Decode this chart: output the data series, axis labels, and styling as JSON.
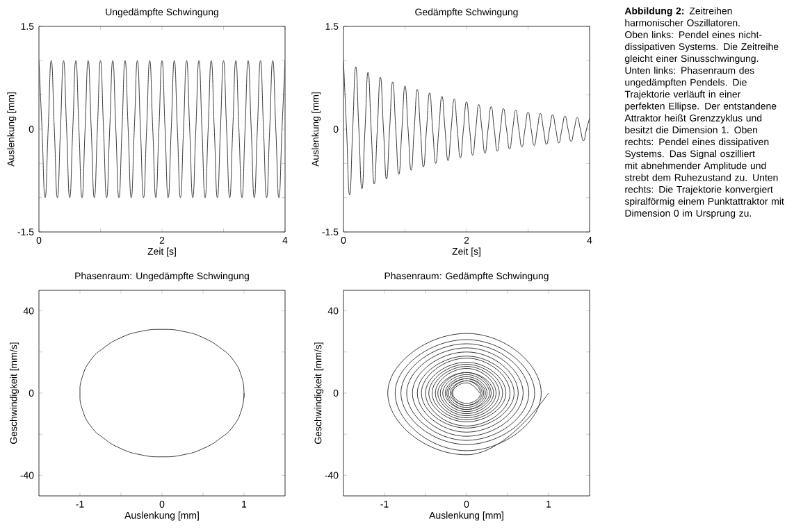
{
  "chart_data": [
    {
      "type": "line",
      "title": "Ungedämpfte Schwingung",
      "xlabel": "Zeit [s]",
      "ylabel": "Auslenkung [mm]",
      "xlim": [
        0,
        4
      ],
      "ylim": [
        -1.5,
        1.5
      ],
      "xticks": [
        0,
        {
          "value": 1,
          "label": null
        },
        2,
        {
          "value": 3,
          "label": null
        },
        4
      ],
      "yticks": [
        -1.5,
        {
          "value": -1,
          "label": null
        },
        {
          "value": -0.5,
          "label": null
        },
        0,
        {
          "value": 0.5,
          "label": null
        },
        {
          "value": 1,
          "label": null
        },
        1.5
      ],
      "grid": false,
      "marker": "none",
      "line_style": "solid",
      "x": [
        0,
        0.05,
        0.1,
        0.15,
        0.2,
        0.25,
        0.3,
        0.35,
        0.4,
        0.45,
        0.5,
        0.55,
        0.6,
        0.65,
        0.7,
        0.75,
        0.8,
        0.85,
        0.9,
        0.95,
        1,
        1.05,
        1.1,
        1.15,
        1.2,
        1.25,
        1.3,
        1.35,
        1.4,
        1.45,
        1.5,
        1.55,
        1.6,
        1.65,
        1.7,
        1.75,
        1.8,
        1.85,
        1.9,
        1.95,
        2,
        2.05,
        2.1,
        2.15,
        2.2,
        2.25,
        2.3,
        2.35,
        2.4,
        2.45,
        2.5,
        2.55,
        2.6,
        2.65,
        2.7,
        2.75,
        2.8,
        2.85,
        2.9,
        2.95,
        3,
        3.05,
        3.1,
        3.15,
        3.2,
        3.25,
        3.3,
        3.35,
        3.4,
        3.45,
        3.5,
        3.55,
        3.6,
        3.65,
        3.7,
        3.75,
        3.8,
        3.85,
        3.9,
        3.95,
        4
      ],
      "series": [
        {
          "color": "#3a3a3a",
          "values": [
            1,
            0,
            -1,
            0,
            1,
            0,
            -1,
            0,
            1,
            0,
            -1,
            0,
            1,
            0,
            -1,
            0,
            1,
            0,
            -1,
            0,
            1,
            0,
            -1,
            0,
            1,
            0,
            -1,
            0,
            1,
            0,
            -1,
            0,
            1,
            0,
            -1,
            0,
            1,
            0,
            -1,
            0,
            1,
            0,
            -1,
            0,
            1,
            0,
            -1,
            0,
            1,
            0,
            -1,
            0,
            1,
            0,
            -1,
            0,
            1,
            0,
            -1,
            0,
            1,
            0,
            -1,
            0,
            1,
            0,
            -1,
            0,
            1,
            0,
            -1,
            0,
            1,
            0,
            -1,
            0,
            1,
            0,
            -1,
            0,
            1
          ]
        }
      ]
    },
    {
      "type": "line",
      "title": "Gedämpfte Schwingung",
      "xlabel": "Zeit [s]",
      "ylabel": "Auslenkung [mm]",
      "xlim": [
        0,
        4
      ],
      "ylim": [
        -1.5,
        1.5
      ],
      "xticks": [
        0,
        {
          "value": 1,
          "label": null
        },
        2,
        {
          "value": 3,
          "label": null
        },
        4
      ],
      "yticks": [
        -1.5,
        {
          "value": -1,
          "label": null
        },
        {
          "value": -0.5,
          "label": null
        },
        0,
        {
          "value": 0.5,
          "label": null
        },
        {
          "value": 1,
          "label": null
        },
        1.5
      ],
      "grid": false,
      "marker": "none",
      "line_style": "solid",
      "x": [
        0,
        0.05,
        0.1,
        0.15,
        0.2,
        0.25,
        0.3,
        0.35,
        0.4,
        0.45,
        0.5,
        0.55,
        0.6,
        0.65,
        0.7,
        0.75,
        0.8,
        0.85,
        0.9,
        0.95,
        1,
        1.05,
        1.1,
        1.15,
        1.2,
        1.25,
        1.3,
        1.35,
        1.4,
        1.45,
        1.5,
        1.55,
        1.6,
        1.65,
        1.7,
        1.75,
        1.8,
        1.85,
        1.9,
        1.95,
        2,
        2.05,
        2.1,
        2.15,
        2.2,
        2.25,
        2.3,
        2.35,
        2.4,
        2.45,
        2.5,
        2.55,
        2.6,
        2.65,
        2.7,
        2.75,
        2.8,
        2.85,
        2.9,
        2.95,
        3,
        3.05,
        3.1,
        3.15,
        3.2,
        3.25,
        3.3,
        3.35,
        3.4,
        3.45,
        3.5,
        3.55,
        3.6,
        3.65,
        3.7,
        3.75,
        3.8,
        3.85,
        3.9,
        3.95,
        4
      ],
      "series": [
        {
          "color": "#3a3a3a",
          "values": [
            1.0,
            0,
            -0.96,
            0,
            0.91,
            0,
            -0.87,
            0,
            0.83,
            0,
            -0.8,
            0,
            0.76,
            0,
            -0.73,
            0,
            0.69,
            0,
            -0.66,
            0,
            0.63,
            0,
            -0.6,
            0,
            0.58,
            0,
            -0.55,
            0,
            0.53,
            0,
            -0.5,
            0,
            0.48,
            0,
            -0.46,
            0,
            0.44,
            0,
            -0.42,
            0,
            0.4,
            0,
            -0.38,
            0,
            0.36,
            0,
            -0.35,
            0,
            0.33,
            0,
            -0.32,
            0,
            0.3,
            0,
            -0.29,
            0,
            0.28,
            0,
            -0.26,
            0,
            0.25,
            0,
            -0.24,
            0,
            0.23,
            0,
            -0.22,
            0,
            0.21,
            0,
            -0.2,
            0,
            0.19,
            0,
            -0.18,
            0,
            0.17,
            0,
            -0.17,
            0,
            0.16
          ]
        }
      ]
    },
    {
      "type": "line",
      "title": "Phasenraum: Ungedämpfte Schwingung",
      "xlabel": "Auslenkung [mm]",
      "ylabel": "Geschwindigkeit [mm/s]",
      "xlim": [
        -1.5,
        1.5
      ],
      "ylim": [
        -50,
        50
      ],
      "xticks": [
        -1,
        {
          "value": -0.5,
          "label": null
        },
        0,
        {
          "value": 0.5,
          "label": null
        },
        1
      ],
      "yticks": [
        -40,
        {
          "value": -20,
          "label": null
        },
        0,
        {
          "value": 20,
          "label": null
        },
        40
      ],
      "grid": false,
      "marker": "none",
      "line_style": "solid",
      "series": [
        {
          "color": "#3a3a3a",
          "x": [
            1,
            0.97,
            0.87,
            0.71,
            0.5,
            0.26,
            0,
            -0.26,
            -0.5,
            -0.71,
            -0.87,
            -0.97,
            -1,
            -0.97,
            -0.87,
            -0.71,
            -0.5,
            -0.26,
            0,
            0.26,
            0.5,
            0.71,
            0.87,
            0.97,
            1,
            0.99
          ],
          "values": [
            0,
            -8,
            -16,
            -22,
            -27,
            -30,
            -31,
            -30,
            -27,
            -22,
            -16,
            -8,
            0,
            8,
            16,
            22,
            27,
            30,
            31,
            30,
            27,
            22,
            16,
            8,
            0,
            -3
          ]
        }
      ]
    },
    {
      "type": "line",
      "title": "Phasenraum: Gedämpfte Schwingung",
      "xlabel": "Auslenkung [mm]",
      "ylabel": "Geschwindigkeit [mm/s]",
      "xlim": [
        -1.5,
        1.5
      ],
      "ylim": [
        -50,
        50
      ],
      "xticks": [
        -1,
        {
          "value": -0.5,
          "label": null
        },
        0,
        {
          "value": 0.5,
          "label": null
        },
        1
      ],
      "yticks": [
        -40,
        {
          "value": -20,
          "label": null
        },
        0,
        {
          "value": 20,
          "label": null
        },
        40
      ],
      "grid": false,
      "marker": "none",
      "line_style": "solid",
      "series": [
        {
          "color": "#3a3a3a",
          "x": [
            1.0,
            0,
            -0.96,
            0,
            0.91,
            0,
            -0.87,
            0,
            0.83,
            0,
            -0.8,
            0,
            0.76,
            0,
            -0.73,
            0,
            0.69,
            0,
            -0.66,
            0,
            0.63,
            0,
            -0.6,
            0,
            0.58,
            0,
            -0.55,
            0,
            0.53,
            0,
            -0.5,
            0,
            0.48,
            0,
            -0.46,
            0,
            0.44,
            0,
            -0.42,
            0,
            0.4,
            0,
            -0.38,
            0,
            0.36,
            0,
            -0.35,
            0,
            0.33,
            0,
            -0.32,
            0,
            0.3,
            0,
            -0.29,
            0,
            0.28,
            0,
            -0.26,
            0,
            0.25,
            0,
            -0.24,
            0,
            0.23,
            0,
            -0.22,
            0,
            0.21,
            0,
            -0.2,
            0,
            0.19,
            0,
            -0.18,
            0,
            0.17,
            0,
            -0.17,
            0,
            0.16
          ],
          "values": [
            0,
            -30,
            0,
            29,
            0,
            -28,
            0,
            26,
            0,
            -25,
            0,
            24,
            0,
            -23,
            0,
            22,
            0,
            -21,
            0,
            20,
            0,
            -19,
            0,
            18,
            0,
            -17,
            0,
            17,
            0,
            -16,
            0,
            15,
            0,
            -14,
            0,
            14,
            0,
            -13,
            0,
            13,
            0,
            -12,
            0,
            12,
            0,
            -11,
            0,
            10,
            0,
            -10,
            0,
            10,
            0,
            -9,
            0,
            9,
            0,
            -8,
            0,
            8,
            0,
            -8,
            0,
            7,
            0,
            -7,
            0,
            7,
            0,
            -6,
            0,
            6,
            0,
            -6,
            0,
            6,
            0,
            -5,
            0,
            5,
            0
          ]
        }
      ]
    },
    {
      "type": "other",
      "annotations": [
        "**Abbildung 2:** Zeitreihen harmonischer Oszillatoren. Oben links: Pendel eines nicht-dissipativen Systems. Die Zeitreihe gleicht einer Sinusschwingung. Unten links: Phasenraum des ungedämpften Pendels. Die Trajektorie verläuft in einer perfekten Ellipse. Der entstandene Attraktor heißt Grenzzyklus und besitzt die Dimension 1. Oben rechts: Pendel eines dissipativen Systems. Das Signal oszilliert mit abnehmender Amplitude und strebt dem Ruhezustand zu. Unten rechts: Die Trajektorie konvergiert spiralförmig einem Punktattraktor mit Dimension 0 im Ursprung zu."
      ]
    }
  ]
}
